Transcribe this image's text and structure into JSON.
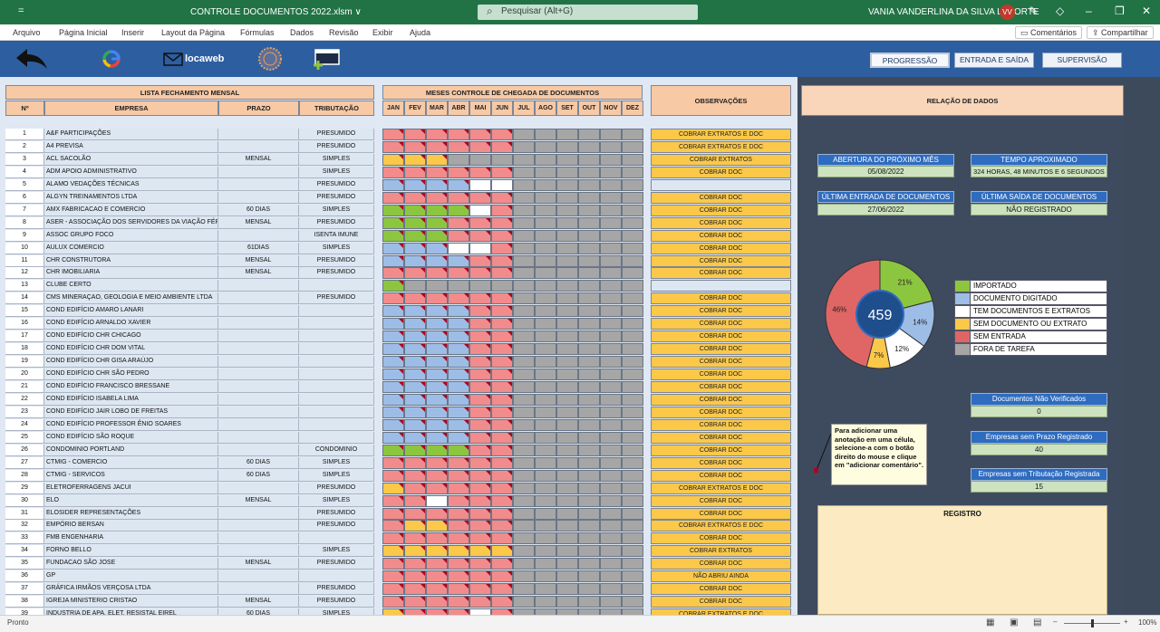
{
  "titlebar": {
    "quick_access": "=",
    "title": "CONTROLE DOCUMENTOS 2022.xlsm ∨",
    "search_placeholder": "Pesquisar (Alt+G)",
    "user": "VANIA VANDERLINA DA SILVA LAPORTE",
    "avatar": "VV"
  },
  "ribbon": {
    "tabs": [
      "Arquivo",
      "Página Inicial",
      "Inserir",
      "Layout da Página",
      "Fórmulas",
      "Dados",
      "Revisão",
      "Exibir",
      "Ajuda"
    ],
    "comments": "Comentários",
    "share": "Compartilhar"
  },
  "toolbar": {
    "logo_text": "locaweb",
    "nav_buttons": [
      "PROGRESSÃO",
      "ENTRADA E SAÍDA",
      "SUPERVISÃO"
    ]
  },
  "headers": {
    "list_title": "LISTA FECHAMENTO MENSAL",
    "months_title": "MESES CONTROLE DE CHEGADA DE DOCUMENTOS",
    "obs": "OBSERVAÇÕES",
    "relacao": "RELAÇÃO DE DADOS",
    "num": "Nº",
    "empresa": "EMPRESA",
    "prazo": "PRAZO",
    "tributacao": "TRIBUTAÇÃO",
    "months": [
      "JAN",
      "FEV",
      "MAR",
      "ABR",
      "MAI",
      "JUN",
      "JUL",
      "AGO",
      "SET",
      "OUT",
      "NOV",
      "DEZ"
    ]
  },
  "colors": {
    "G": "#8cc63f",
    "B": "#9dbde6",
    "W": "#ffffff",
    "Y": "#fbc84a",
    "R": "#f28b8b",
    "X": "#a6a6a6"
  },
  "rows": [
    {
      "n": "1",
      "e": "A&F PARTICIPAÇÕES",
      "p": "",
      "t": "PRESUMIDO",
      "m": "RRRRRRXXXXXX",
      "o": "COBRAR EXTRATOS E DOC",
      "os": "y"
    },
    {
      "n": "2",
      "e": "A4 PREVISA",
      "p": "",
      "t": "PRESUMIDO",
      "m": "RRRRRRXXXXXX",
      "o": "COBRAR EXTRATOS E DOC",
      "os": "y"
    },
    {
      "n": "3",
      "e": "ACL SACOLÃO",
      "p": "MENSAL",
      "t": "SIMPLES",
      "m": "YYYXXXXXXXXX",
      "o": "COBRAR EXTRATOS",
      "os": "y"
    },
    {
      "n": "4",
      "e": "ADM APOIO ADMINISTRATIVO",
      "p": "",
      "t": "SIMPLES",
      "m": "RRRRRRXXXXXX",
      "o": "COBRAR DOC",
      "os": "y"
    },
    {
      "n": "5",
      "e": "ALAMO VEDAÇÕES TÉCNICAS",
      "p": "",
      "t": "PRESUMIDO",
      "m": "BBBBWWXXXXXX",
      "o": "",
      "os": "b"
    },
    {
      "n": "6",
      "e": "ALGYN TREINAMENTOS LTDA",
      "p": "",
      "t": "PRESUMIDO",
      "m": "RRRRRRXXXXXX",
      "o": "COBRAR DOC",
      "os": "y"
    },
    {
      "n": "7",
      "e": "AMX FABRICACAO E COMERCIO",
      "p": "60 DIAS",
      "t": "SIMPLES",
      "m": "GGGGWRXXXXXX",
      "o": "COBRAR DOC",
      "os": "y"
    },
    {
      "n": "8",
      "e": "ASER - ASSOCIAÇÃO DOS SERVIDORES DA VIAÇÃO FÉRREA",
      "p": "MENSAL",
      "t": "PRESUMIDO",
      "m": "GGGRRRXXXXXX",
      "o": "COBRAR DOC",
      "os": "y"
    },
    {
      "n": "9",
      "e": "ASSOC GRUPO FOCO",
      "p": "",
      "t": "ISENTA IMUNE",
      "m": "GGGRRRXXXXXX",
      "o": "COBRAR DOC",
      "os": "y"
    },
    {
      "n": "10",
      "e": "AULUX COMERCIO",
      "p": "61DIAS",
      "t": "SIMPLES",
      "m": "BBBWWRXXXXXX",
      "o": "COBRAR DOC",
      "os": "y"
    },
    {
      "n": "11",
      "e": "CHR CONSTRUTORA",
      "p": "MENSAL",
      "t": "PRESUMIDO",
      "m": "BBBBRRXXXXXX",
      "o": "COBRAR DOC",
      "os": "y"
    },
    {
      "n": "12",
      "e": "CHR IMOBILIARIA",
      "p": "MENSAL",
      "t": "PRESUMIDO",
      "m": "RRRRRRXXXXXX",
      "o": "COBRAR DOC",
      "os": "y"
    },
    {
      "n": "13",
      "e": "CLUBE CERTO",
      "p": "",
      "t": "",
      "m": "GXXXXXXXXXXX",
      "o": "",
      "os": "b"
    },
    {
      "n": "14",
      "e": "CMS MINERAÇAO, GEOLOGIA E MEIO AMBIENTE LTDA",
      "p": "",
      "t": "PRESUMIDO",
      "m": "RRRRRRXXXXXX",
      "o": "COBRAR DOC",
      "os": "y"
    },
    {
      "n": "15",
      "e": "COND EDIFÍCIO AMARO LANARI",
      "p": "",
      "t": "",
      "m": "BBBBRRXXXXXX",
      "o": "COBRAR DOC",
      "os": "y"
    },
    {
      "n": "16",
      "e": "COND EDIFÍCIO ARNALDO XAVIER",
      "p": "",
      "t": "",
      "m": "BBBBRRXXXXXX",
      "o": "COBRAR DOC",
      "os": "y"
    },
    {
      "n": "17",
      "e": "COND EDIFÍCIO CHR CHICAGO",
      "p": "",
      "t": "",
      "m": "BBBBRRXXXXXX",
      "o": "COBRAR DOC",
      "os": "y"
    },
    {
      "n": "18",
      "e": "COND EDIFÍCIO CHR DOM VITAL",
      "p": "",
      "t": "",
      "m": "BBBBRRXXXXXX",
      "o": "COBRAR DOC",
      "os": "y"
    },
    {
      "n": "19",
      "e": "COND EDIFÍCIO CHR GISA ARAÚJO",
      "p": "",
      "t": "",
      "m": "BBBBRRXXXXXX",
      "o": "COBRAR DOC",
      "os": "y"
    },
    {
      "n": "20",
      "e": "COND EDIFÍCIO CHR SÃO PEDRO",
      "p": "",
      "t": "",
      "m": "BBBBRRXXXXXX",
      "o": "COBRAR DOC",
      "os": "y"
    },
    {
      "n": "21",
      "e": "COND EDIFÍCIO FRANCISCO BRESSANE",
      "p": "",
      "t": "",
      "m": "BBBBRRXXXXXX",
      "o": "COBRAR DOC",
      "os": "y"
    },
    {
      "n": "22",
      "e": "COND EDIFÍCIO ISABELA LIMA",
      "p": "",
      "t": "",
      "m": "BBBBRRXXXXXX",
      "o": "COBRAR DOC",
      "os": "y"
    },
    {
      "n": "23",
      "e": "COND EDIFÍCIO JAIR LOBO DE FREITAS",
      "p": "",
      "t": "",
      "m": "BBBBRRXXXXXX",
      "o": "COBRAR DOC",
      "os": "y"
    },
    {
      "n": "24",
      "e": "COND EDIFÍCIO PROFESSOR ÊNIO SOARES",
      "p": "",
      "t": "",
      "m": "BBBBRRXXXXXX",
      "o": "COBRAR DOC",
      "os": "y"
    },
    {
      "n": "25",
      "e": "COND EDIFÍCIO SÃO ROQUE",
      "p": "",
      "t": "",
      "m": "BBBBRRXXXXXX",
      "o": "COBRAR DOC",
      "os": "y"
    },
    {
      "n": "26",
      "e": "CONDOMINIO PORTLAND",
      "p": "",
      "t": "CONDOMINIO",
      "m": "GGGGRRXXXXXX",
      "o": "COBRAR DOC",
      "os": "y"
    },
    {
      "n": "27",
      "e": "CTMIG - COMERCIO",
      "p": "60 DIAS",
      "t": "SIMPLES",
      "m": "RRRRRRXXXXXX",
      "o": "COBRAR DOC",
      "os": "y"
    },
    {
      "n": "28",
      "e": "CTMIG - SERVICOS",
      "p": "60 DIAS",
      "t": "SIMPLES",
      "m": "RRRRRRXXXXXX",
      "o": "COBRAR DOC",
      "os": "y"
    },
    {
      "n": "29",
      "e": "ELETROFERRAGENS JACUI",
      "p": "",
      "t": "PRESUMIDO",
      "m": "YRRRRRXXXXXX",
      "o": "COBRAR EXTRATOS E DOC",
      "os": "y"
    },
    {
      "n": "30",
      "e": "ELO",
      "p": "MENSAL",
      "t": "SIMPLES",
      "m": "RRWRRRXXXXXX",
      "o": "COBRAR DOC",
      "os": "y"
    },
    {
      "n": "31",
      "e": "ELOSIDER REPRESENTAÇÕES",
      "p": "",
      "t": "PRESUMIDO",
      "m": "RRRRRRXXXXXX",
      "o": "COBRAR DOC",
      "os": "y"
    },
    {
      "n": "32",
      "e": "EMPÓRIO BERSAN",
      "p": "",
      "t": "PRESUMIDO",
      "m": "RYYRRRXXXXXX",
      "o": "COBRAR EXTRATOS E DOC",
      "os": "y"
    },
    {
      "n": "33",
      "e": "FMB ENGENHARIA",
      "p": "",
      "t": "",
      "m": "RRRRRRXXXXXX",
      "o": "COBRAR DOC",
      "os": "y"
    },
    {
      "n": "34",
      "e": "FORNO BELLO",
      "p": "",
      "t": "SIMPLES",
      "m": "YYYYYYXXXXXX",
      "o": "COBRAR EXTRATOS",
      "os": "y"
    },
    {
      "n": "35",
      "e": "FUNDACAO SÃO JOSE",
      "p": "MENSAL",
      "t": "PRESUMIDO",
      "m": "RRRRRRXXXXXX",
      "o": "COBRAR DOC",
      "os": "y"
    },
    {
      "n": "36",
      "e": "GP",
      "p": "",
      "t": "",
      "m": "RRRRRRXXXXXX",
      "o": "NÃO ABRIU AINDA",
      "os": "y"
    },
    {
      "n": "37",
      "e": "GRÁFICA IRMÃOS VERÇOSA LTDA",
      "p": "",
      "t": "PRESUMIDO",
      "m": "RRRRRRXXXXXX",
      "o": "COBRAR DOC",
      "os": "y"
    },
    {
      "n": "38",
      "e": "IGREJA MINISTERIO CRISTAO",
      "p": "MENSAL",
      "t": "PRESUMIDO",
      "m": "RRRRRRXXXXXX",
      "o": "COBRAR DOC",
      "os": "y"
    },
    {
      "n": "39",
      "e": "INDUSTRIA DE APA. ELET. RESISTAL EIREL",
      "p": "60 DIAS",
      "t": "SIMPLES",
      "m": "YRRRWRXXXXXX",
      "o": "COBRAR EXTRATOS E DOC",
      "os": "y"
    }
  ],
  "info": {
    "abertura_title": "ABERTURA DO PRÓXIMO MÊS",
    "abertura_val": "05/08/2022",
    "tempo_title": "TEMPO APROXIMADO",
    "tempo_val": "324 HORAS, 48 MINUTOS E 6 SEGUNDOS",
    "ultima_entrada_title": "ÚLTIMA ENTRADA DE DOCUMENTOS",
    "ultima_entrada_val": "27/06/2022",
    "ultima_saida_title": "ÚLTIMA SAÍDA DE DOCUMENTOS",
    "ultima_saida_val": "NÃO REGISTRADO",
    "nao_verif_title": "Documentos Não Verificados",
    "nao_verif_val": "0",
    "sem_prazo_title": "Empresas sem Prazo Registrado",
    "sem_prazo_val": "40",
    "sem_trib_title": "Empresas sem Tributação Registrada",
    "sem_trib_val": "15"
  },
  "chart_data": {
    "type": "pie",
    "center_label": "459",
    "slices": [
      {
        "label": "IMPORTADO",
        "value": 21,
        "text": "21%",
        "color": "#8cc63f"
      },
      {
        "label": "DOCUMENTO DIGITADO",
        "value": 14,
        "text": "14%",
        "color": "#9dbde6"
      },
      {
        "label": "TEM DOCUMENTOS E EXTRATOS",
        "value": 12,
        "text": "12%",
        "color": "#ffffff"
      },
      {
        "label": "SEM DOCUMENTO OU EXTRATO",
        "value": 7,
        "text": "7%",
        "color": "#fbc84a"
      },
      {
        "label": "SEM ENTRADA",
        "value": 46,
        "text": "46%",
        "color": "#e06666"
      },
      {
        "label": "FORA DE TAREFA",
        "value": 0,
        "text": "",
        "color": "#a6a6a6"
      }
    ]
  },
  "note": "Para adicionar uma anotação em uma célula, selecione-a com o botão direito do mouse e clique em \"adicionar comentário\".",
  "registro": "REGISTRO",
  "status": {
    "left": "Pronto",
    "zoom": "100%"
  }
}
